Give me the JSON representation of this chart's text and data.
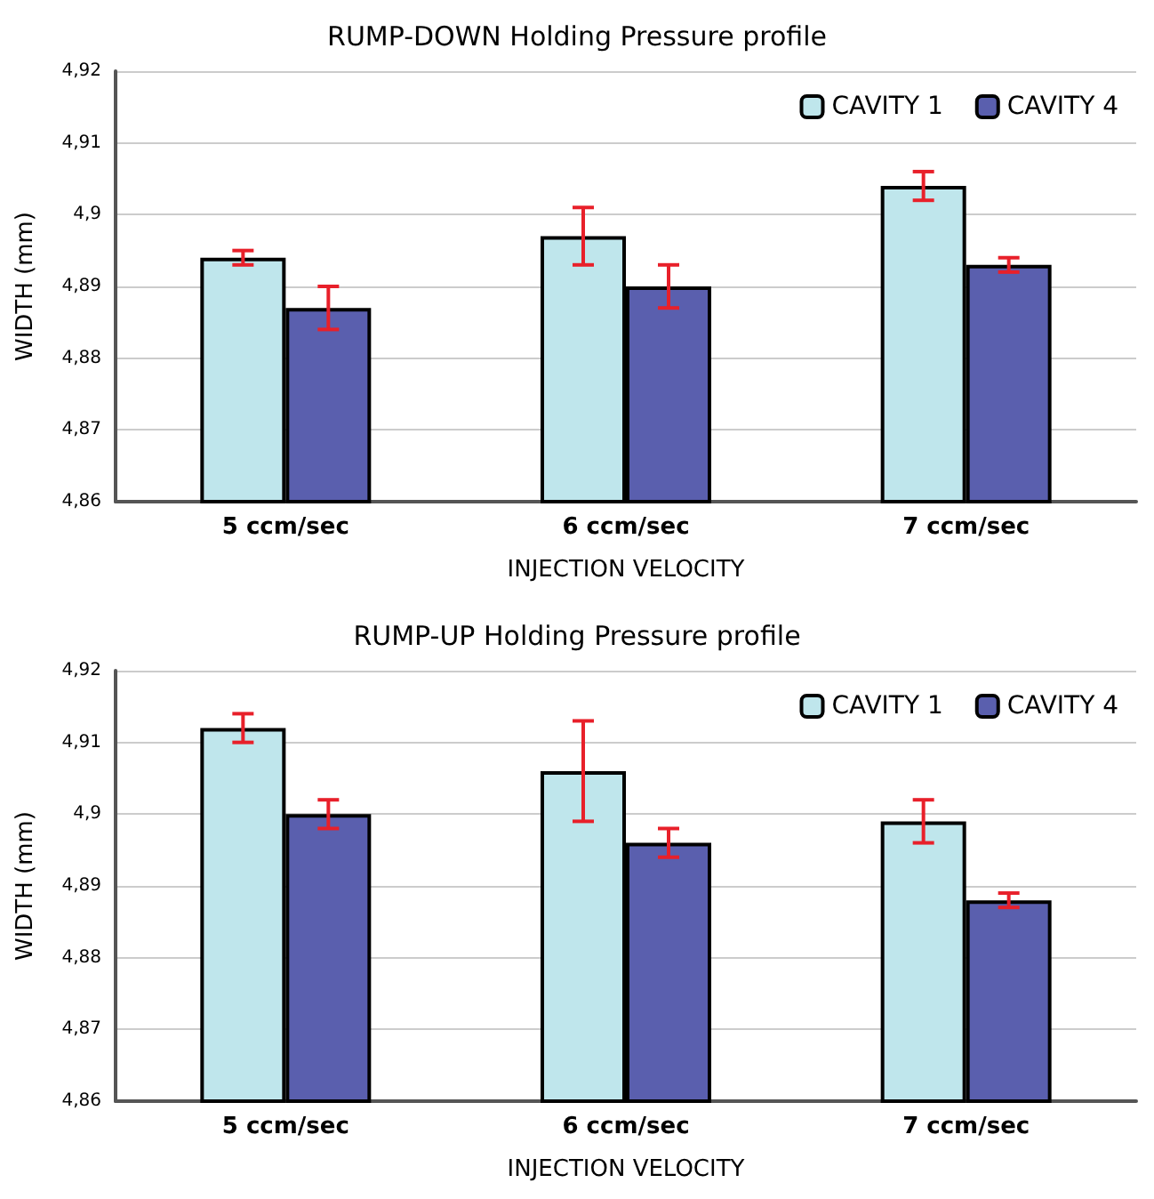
{
  "chart_data": [
    {
      "type": "bar",
      "title": "RUMP-DOWN Holding Pressure profile",
      "xlabel": "INJECTION VELOCITY",
      "ylabel": "WIDTH (mm)",
      "categories": [
        "5 ccm/sec",
        "6 ccm/sec",
        "7 ccm/sec"
      ],
      "series": [
        {
          "name": "CAVITY 1",
          "color": "#bfe6ec",
          "values": [
            4.894,
            4.897,
            4.904
          ],
          "errors": [
            0.001,
            0.004,
            0.002
          ]
        },
        {
          "name": "CAVITY 4",
          "color": "#5a5fae",
          "values": [
            4.887,
            4.89,
            4.893
          ],
          "errors": [
            0.003,
            0.003,
            0.001
          ]
        }
      ],
      "ylim": [
        4.86,
        4.92
      ],
      "yticks": [
        {
          "value": 4.86,
          "label": "4,86"
        },
        {
          "value": 4.87,
          "label": "4,87"
        },
        {
          "value": 4.88,
          "label": "4,88"
        },
        {
          "value": 4.89,
          "label": "4,89"
        },
        {
          "value": 4.9,
          "label": "4,9"
        },
        {
          "value": 4.91,
          "label": "4,91"
        },
        {
          "value": 4.92,
          "label": "4,92"
        }
      ],
      "grid": "y",
      "legend": "top right"
    },
    {
      "type": "bar",
      "title": "RUMP-UP Holding Pressure profile",
      "xlabel": "INJECTION VELOCITY",
      "ylabel": "WIDTH (mm)",
      "categories": [
        "5 ccm/sec",
        "6 ccm/sec",
        "7 ccm/sec"
      ],
      "series": [
        {
          "name": "CAVITY 1",
          "color": "#bfe6ec",
          "values": [
            4.912,
            4.906,
            4.899
          ],
          "errors": [
            0.002,
            0.007,
            0.003
          ]
        },
        {
          "name": "CAVITY 4",
          "color": "#5a5fae",
          "values": [
            4.9,
            4.896,
            4.888
          ],
          "errors": [
            0.002,
            0.002,
            0.001
          ]
        }
      ],
      "ylim": [
        4.86,
        4.92
      ],
      "yticks": [
        {
          "value": 4.86,
          "label": "4,86"
        },
        {
          "value": 4.87,
          "label": "4,87"
        },
        {
          "value": 4.88,
          "label": "4,88"
        },
        {
          "value": 4.89,
          "label": "4,89"
        },
        {
          "value": 4.9,
          "label": "4,9"
        },
        {
          "value": 4.91,
          "label": "4,91"
        },
        {
          "value": 4.92,
          "label": "4,92"
        }
      ],
      "grid": "y",
      "legend": "top right"
    }
  ]
}
